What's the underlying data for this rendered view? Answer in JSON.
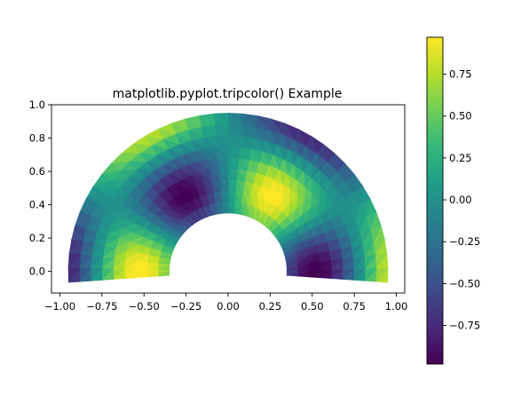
{
  "chart_data": {
    "type": "heatmap",
    "plot_kind": "tripcolor",
    "title": "matplotlib.pyplot.tripcolor() Example",
    "xlabel": "",
    "ylabel": "",
    "xlim": [
      -1.05,
      1.05
    ],
    "ylim": [
      -0.13,
      1.0
    ],
    "x_ticks": [
      -1.0,
      -0.75,
      -0.5,
      -0.25,
      0.0,
      0.25,
      0.5,
      0.75,
      1.0
    ],
    "x_tick_labels": [
      "−1.00",
      "−0.75",
      "−0.50",
      "−0.25",
      "0.00",
      "0.25",
      "0.50",
      "0.75",
      "1.00"
    ],
    "y_ticks": [
      0.0,
      0.2,
      0.4,
      0.6,
      0.8,
      1.0
    ],
    "y_tick_labels": [
      "0.0",
      "0.2",
      "0.4",
      "0.6",
      "0.8",
      "1.0"
    ],
    "colormap": "viridis",
    "colorbar": {
      "range": [
        -0.98,
        0.97
      ],
      "ticks": [
        -0.75,
        -0.5,
        -0.25,
        0.0,
        0.25,
        0.5,
        0.75
      ],
      "tick_labels": [
        "−0.75",
        "−0.50",
        "−0.25",
        "0.00",
        "0.25",
        "0.50",
        "0.75"
      ]
    },
    "mesh": {
      "shape": "annular sector",
      "inner_radius": 0.35,
      "outer_radius": 0.95,
      "angle_start_deg": -4,
      "angle_end_deg": 184,
      "field": "cos(3*theta)*cos(6*radius)"
    },
    "grid": false,
    "legend": "none"
  },
  "colors": {
    "viridis": [
      "#440154",
      "#482878",
      "#3e4989",
      "#31688e",
      "#26828e",
      "#1f9e89",
      "#35b779",
      "#6ece58",
      "#b5de2b",
      "#fde725"
    ]
  }
}
